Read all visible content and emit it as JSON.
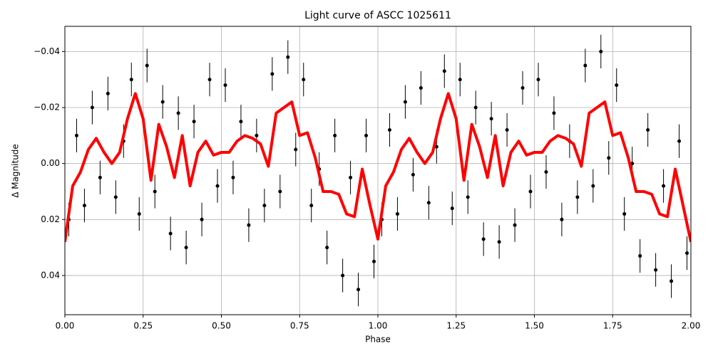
{
  "chart_data": {
    "type": "line",
    "title": "Light curve of ASCC 1025611",
    "xlabel": "Phase",
    "ylabel": "Δ Magnitude",
    "xlim": [
      0,
      2
    ],
    "ylim": [
      0.054,
      -0.049
    ],
    "grid": true,
    "xticks": [
      {
        "value": 0,
        "label": "0.00"
      },
      0.25,
      {
        "value": 0.5,
        "label": "0.50"
      },
      0.75,
      {
        "value": 1,
        "label": "1.00"
      },
      1.25,
      {
        "value": 1.5,
        "label": "1.50"
      },
      1.75,
      {
        "value": 2,
        "label": "2.00"
      }
    ],
    "yticks": [
      {
        "value": -0.04,
        "label": "−0.04"
      },
      {
        "value": -0.02,
        "label": "−0.02"
      },
      {
        "value": 0,
        "label": "0.00"
      },
      0.02,
      0.04
    ],
    "series": [
      {
        "type": "errorbar",
        "color": "#000000",
        "yerr": 0.006,
        "x": [
          0.0125,
          0.0375,
          0.0625,
          0.0875,
          0.1125,
          0.1375,
          0.1625,
          0.1875,
          0.2125,
          0.2375,
          0.2625,
          0.2875,
          0.3125,
          0.3375,
          0.3625,
          0.3875,
          0.4125,
          0.4375,
          0.4625,
          0.4875,
          0.5125,
          0.5375,
          0.5625,
          0.5875,
          0.6125,
          0.6375,
          0.6625,
          0.6875,
          0.7125,
          0.7375,
          0.7625,
          0.7875,
          0.8125,
          0.8375,
          0.8625,
          0.8875,
          0.9125,
          0.9375,
          0.9625,
          0.9875,
          1.0125,
          1.0375,
          1.0625,
          1.0875,
          1.1125,
          1.1375,
          1.1625,
          1.1875,
          1.2125,
          1.2375,
          1.2625,
          1.2875,
          1.3125,
          1.3375,
          1.3625,
          1.3875,
          1.4125,
          1.4375,
          1.4625,
          1.4875,
          1.5125,
          1.5375,
          1.5625,
          1.5875,
          1.6125,
          1.6375,
          1.6625,
          1.6875,
          1.7125,
          1.7375,
          1.7625,
          1.7875,
          1.8125,
          1.8375,
          1.8625,
          1.8875,
          1.9125,
          1.9375,
          1.9625,
          1.9875
        ],
        "values": [
          0.02,
          -0.01,
          0.015,
          -0.02,
          0.005,
          -0.025,
          0.012,
          -0.008,
          -0.03,
          0.018,
          -0.035,
          0.01,
          -0.022,
          0.025,
          -0.018,
          0.03,
          -0.015,
          0.02,
          -0.03,
          0.008,
          -0.028,
          0.005,
          -0.015,
          0.022,
          -0.01,
          0.015,
          -0.032,
          0.01,
          -0.038,
          -0.005,
          -0.03,
          0.015,
          0.002,
          0.03,
          -0.01,
          0.04,
          0.005,
          0.045,
          -0.01,
          0.035,
          0.02,
          -0.012,
          0.018,
          -0.022,
          0.004,
          -0.027,
          0.014,
          -0.006,
          -0.033,
          0.016,
          -0.03,
          0.012,
          -0.02,
          0.027,
          -0.016,
          0.028,
          -0.012,
          0.022,
          -0.027,
          0.01,
          -0.03,
          0.003,
          -0.018,
          0.02,
          -0.008,
          0.012,
          -0.035,
          0.008,
          -0.04,
          -0.002,
          -0.028,
          0.018,
          0.0,
          0.033,
          -0.012,
          0.038,
          0.008,
          0.042,
          -0.008,
          0.032
        ]
      },
      {
        "type": "line",
        "color": "#ff0000",
        "x": [
          0,
          0.025,
          0.05,
          0.075,
          0.1,
          0.125,
          0.15,
          0.175,
          0.2,
          0.225,
          0.25,
          0.275,
          0.3,
          0.325,
          0.35,
          0.375,
          0.4,
          0.425,
          0.45,
          0.475,
          0.5,
          0.525,
          0.55,
          0.575,
          0.6,
          0.625,
          0.65,
          0.675,
          0.7,
          0.725,
          0.75,
          0.775,
          0.8,
          0.825,
          0.85,
          0.875,
          0.9,
          0.925,
          0.95,
          0.975,
          1,
          1.025,
          1.05,
          1.075,
          1.1,
          1.125,
          1.15,
          1.175,
          1.2,
          1.225,
          1.25,
          1.275,
          1.3,
          1.325,
          1.35,
          1.375,
          1.4,
          1.425,
          1.45,
          1.475,
          1.5,
          1.525,
          1.55,
          1.575,
          1.6,
          1.625,
          1.65,
          1.675,
          1.7,
          1.725,
          1.75,
          1.775,
          1.8,
          1.825,
          1.85,
          1.875,
          1.9,
          1.925,
          1.95,
          1.975,
          2
        ],
        "values": [
          0.028,
          0.008,
          0.003,
          -0.005,
          -0.009,
          -0.004,
          0.0,
          -0.004,
          -0.016,
          -0.025,
          -0.016,
          0.006,
          -0.014,
          -0.006,
          0.005,
          -0.01,
          0.008,
          -0.004,
          -0.008,
          -0.003,
          -0.004,
          -0.004,
          -0.008,
          -0.01,
          -0.009,
          -0.007,
          0.001,
          -0.018,
          -0.02,
          -0.022,
          -0.01,
          -0.011,
          -0.002,
          0.01,
          0.01,
          0.011,
          0.018,
          0.019,
          0.002,
          0.015,
          0.027,
          0.008,
          0.003,
          -0.005,
          -0.009,
          -0.004,
          0.0,
          -0.004,
          -0.016,
          -0.025,
          -0.016,
          0.006,
          -0.014,
          -0.006,
          0.005,
          -0.01,
          0.008,
          -0.004,
          -0.008,
          -0.003,
          -0.004,
          -0.004,
          -0.008,
          -0.01,
          -0.009,
          -0.007,
          0.001,
          -0.018,
          -0.02,
          -0.022,
          -0.01,
          -0.011,
          -0.002,
          0.01,
          0.01,
          0.011,
          0.018,
          0.019,
          0.002,
          0.015,
          0.028
        ]
      }
    ]
  }
}
